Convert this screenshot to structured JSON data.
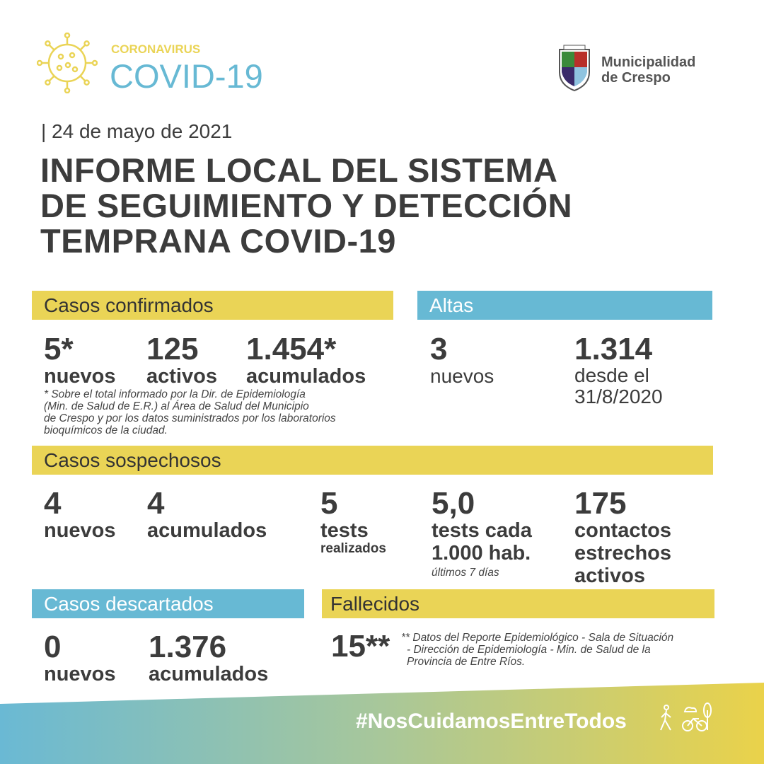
{
  "header": {
    "kicker": "CORONAVIRUS",
    "brand": "COVID-19",
    "municipality": [
      "Municipalidad",
      "de Crespo"
    ],
    "date": "| 24 de mayo de 2021",
    "title": [
      "INFORME LOCAL DEL SISTEMA",
      "DE SEGUIMIENTO Y DETECCIÓN",
      "TEMPRANA COVID-19"
    ]
  },
  "confirmados": {
    "label": "Casos confirmados",
    "items": [
      {
        "value": "5*",
        "label": "nuevos"
      },
      {
        "value": "125",
        "label": "activos"
      },
      {
        "value": "1.454*",
        "label": "acumulados"
      }
    ],
    "note": [
      "* Sobre el total informado por la Dir. de Epidemiología",
      "(Min. de Salud de E.R.) al Área de Salud del Municipio",
      "de Crespo y por los datos suministrados por los laboratorios",
      "bioquímicos de la ciudad."
    ]
  },
  "altas": {
    "label": "Altas",
    "items": [
      {
        "value": "3",
        "label": "nuevos"
      },
      {
        "value": "1.314",
        "label": [
          "desde el",
          "31/8/2020"
        ]
      }
    ]
  },
  "sospechosos": {
    "label": "Casos sospechosos",
    "items": [
      {
        "value": "4",
        "label": "nuevos"
      },
      {
        "value": "4",
        "label": "acumulados"
      },
      {
        "value": "5",
        "label": "tests",
        "sub": "realizados"
      },
      {
        "value": "5,0",
        "label": [
          "tests cada",
          "1.000 hab."
        ],
        "sub": "últimos 7 días"
      },
      {
        "value": "175",
        "label": [
          "contactos",
          "estrechos",
          "activos"
        ]
      }
    ]
  },
  "descartados": {
    "label": "Casos descartados",
    "items": [
      {
        "value": "0",
        "label": "nuevos"
      },
      {
        "value": "1.376",
        "label": "acumulados"
      }
    ]
  },
  "fallecidos": {
    "label": "Fallecidos",
    "value": "15**",
    "note": [
      "** Datos del Reporte Epidemiológico - Sala de Situación",
      "- Dirección de Epidemiología - Min. de Salud de la",
      "Provincia de Entre Ríos."
    ]
  },
  "footer": {
    "hashtag": "#NosCuidamosEntreTodos"
  },
  "colors": {
    "yellow": "#ead456",
    "blue": "#67b9d4",
    "text": "#3c3c3c"
  }
}
